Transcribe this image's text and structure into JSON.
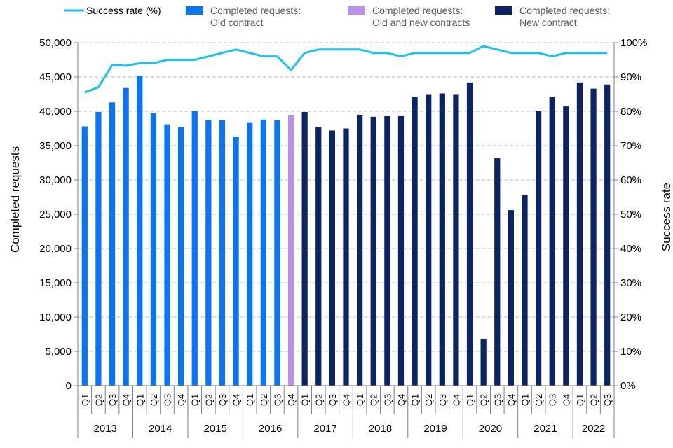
{
  "chart_data": {
    "type": "bar",
    "ylabel": "Completed requests",
    "y2label": "Success rate",
    "ylim": [
      0,
      50000
    ],
    "y2lim": [
      0,
      100
    ],
    "yticks": [
      "0",
      "5,000",
      "10,000",
      "15,000",
      "20,000",
      "25,000",
      "30,000",
      "35,000",
      "40,000",
      "45,000",
      "50,000"
    ],
    "y2ticks": [
      "0%",
      "10%",
      "20%",
      "30%",
      "40%",
      "50%",
      "60%",
      "70%",
      "80%",
      "90%",
      "100%"
    ],
    "grid": true,
    "legend_position": "top",
    "legend": [
      {
        "key": "rate",
        "lines": [
          "Success rate (%)"
        ],
        "marker": "line"
      },
      {
        "key": "old",
        "lines": [
          "Completed requests:",
          "Old contract"
        ],
        "marker": "box"
      },
      {
        "key": "mixed",
        "lines": [
          "Completed requests:",
          "Old and new contracts"
        ],
        "marker": "box"
      },
      {
        "key": "new",
        "lines": [
          "Completed requests:",
          "New contract"
        ],
        "marker": "box"
      }
    ],
    "colors": {
      "old": "#0a74f5",
      "mixed": "#b991ec",
      "new": "#0b2463",
      "rate": "#19c3f0",
      "grid": "#bfbfbf",
      "axis": "#7f7f7f"
    },
    "years": [
      {
        "label": "2013",
        "quarters": [
          "Q1",
          "Q2",
          "Q3",
          "Q4"
        ]
      },
      {
        "label": "2014",
        "quarters": [
          "Q1",
          "Q2",
          "Q3",
          "Q4"
        ]
      },
      {
        "label": "2015",
        "quarters": [
          "Q1",
          "Q2",
          "Q3",
          "Q4"
        ]
      },
      {
        "label": "2016",
        "quarters": [
          "Q1",
          "Q2",
          "Q3",
          "Q4"
        ]
      },
      {
        "label": "2017",
        "quarters": [
          "Q1",
          "Q2",
          "Q3",
          "Q4"
        ]
      },
      {
        "label": "2018",
        "quarters": [
          "Q1",
          "Q2",
          "Q3",
          "Q4"
        ]
      },
      {
        "label": "2019",
        "quarters": [
          "Q1",
          "Q2",
          "Q3",
          "Q4"
        ]
      },
      {
        "label": "2020",
        "quarters": [
          "Q1",
          "Q2",
          "Q3",
          "Q4"
        ]
      },
      {
        "label": "2021",
        "quarters": [
          "Q1",
          "Q2",
          "Q3",
          "Q4"
        ]
      },
      {
        "label": "2022",
        "quarters": [
          "Q1",
          "Q2",
          "Q3"
        ]
      }
    ],
    "series": [
      {
        "name": "Completed requests: Old contract",
        "key": "old",
        "values": [
          37800,
          39900,
          41300,
          43400,
          45200,
          39700,
          38100,
          37700,
          40000,
          38700,
          38700,
          36300,
          38400,
          38800,
          38700,
          null,
          null,
          null,
          null,
          null,
          null,
          null,
          null,
          null,
          null,
          null,
          null,
          null,
          null,
          null,
          null,
          null,
          null,
          null,
          null,
          null,
          null,
          null,
          null
        ]
      },
      {
        "name": "Completed requests: Old and new contracts",
        "key": "mixed",
        "values": [
          null,
          null,
          null,
          null,
          null,
          null,
          null,
          null,
          null,
          null,
          null,
          null,
          null,
          null,
          null,
          39500,
          null,
          null,
          null,
          null,
          null,
          null,
          null,
          null,
          null,
          null,
          null,
          null,
          null,
          null,
          null,
          null,
          null,
          null,
          null,
          null,
          null,
          null,
          null
        ]
      },
      {
        "name": "Completed requests: New contract",
        "key": "new",
        "values": [
          null,
          null,
          null,
          null,
          null,
          null,
          null,
          null,
          null,
          null,
          null,
          null,
          null,
          null,
          null,
          null,
          39900,
          37700,
          37200,
          37500,
          39500,
          39200,
          39300,
          39400,
          42100,
          42400,
          42600,
          42400,
          44200,
          6800,
          33200,
          25600,
          27800,
          40000,
          42100,
          40700,
          44200,
          43300,
          43900
        ]
      },
      {
        "name": "Success rate (%)",
        "key": "rate",
        "axis": "right",
        "values": [
          85.5,
          87,
          93.5,
          93.3,
          94,
          94,
          95,
          95,
          95,
          96,
          97,
          98,
          97,
          96,
          96,
          92,
          97,
          98,
          98,
          98,
          98,
          97,
          97,
          96,
          97,
          97,
          97,
          97,
          97,
          99,
          98,
          97,
          97,
          97,
          96,
          97,
          97,
          97,
          97
        ]
      }
    ]
  }
}
